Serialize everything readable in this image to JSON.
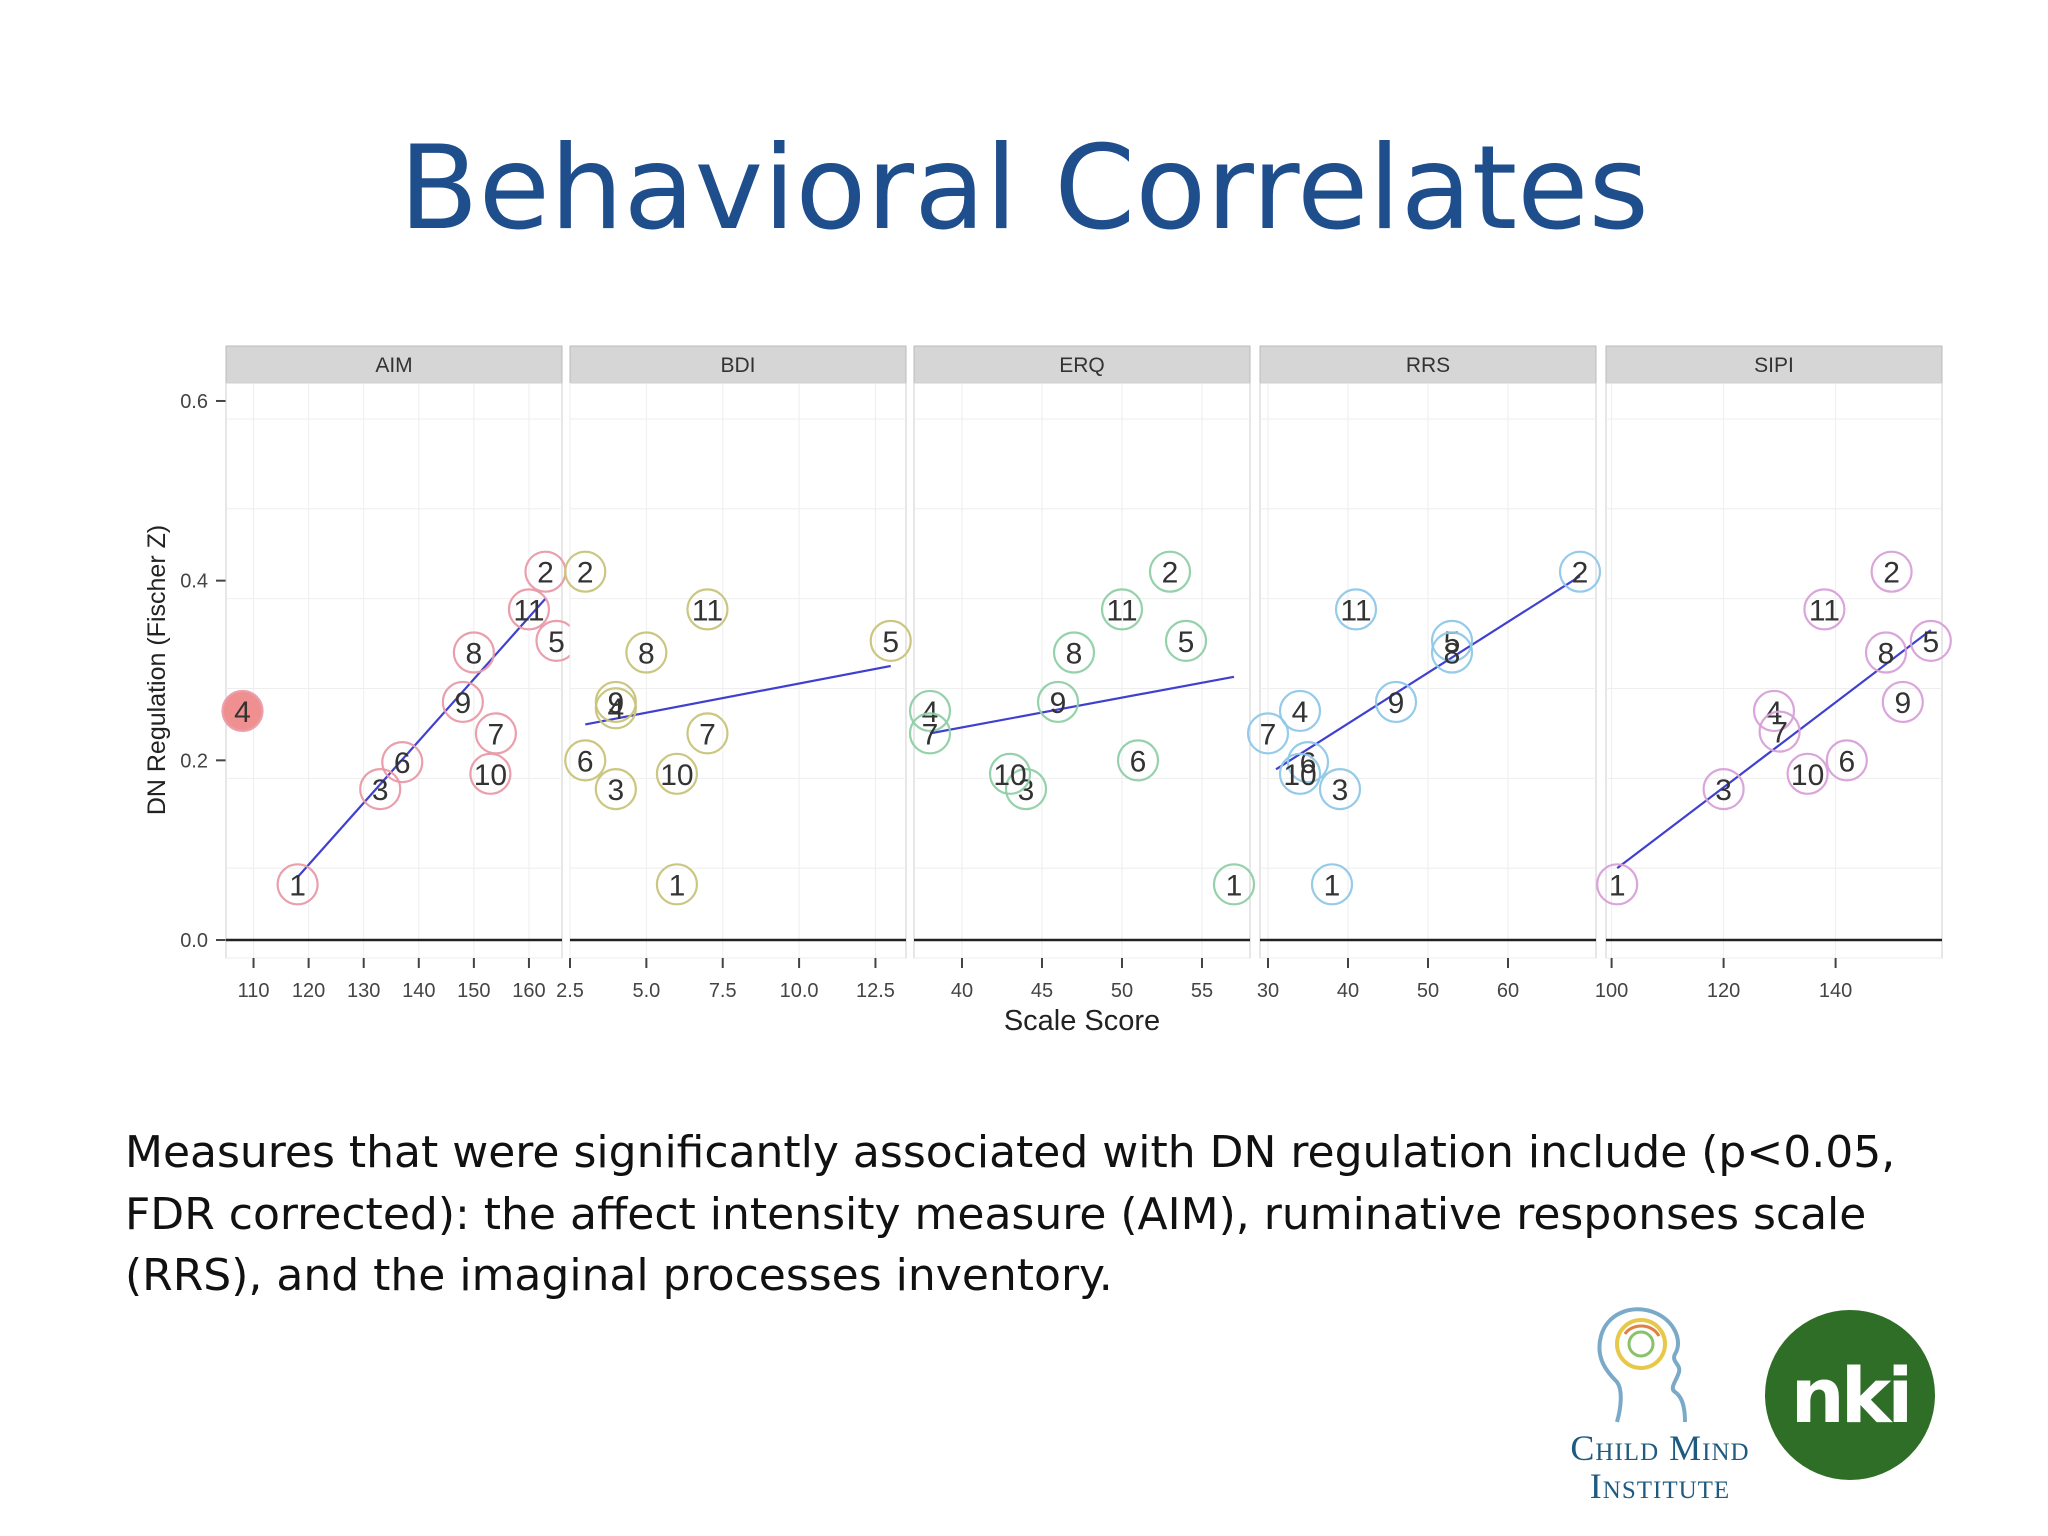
{
  "slide": {
    "title": "Behavioral Correlates",
    "caption_lines": [
      "Measures that were significantly associated with DN regulation include (p<0.05,",
      "FDR corrected):  the affect intensity measure (AIM), ruminative responses scale",
      "(RRS), and the imaginal processes inventory."
    ]
  },
  "logos": {
    "child_mind_line1": "Child Mind",
    "child_mind_line2": "Institute",
    "nki_text": "nki"
  },
  "chart_data": {
    "type": "scatter",
    "xlabel": "Scale Score",
    "ylabel": "DN Regulation (Fischer Z)",
    "ylim": [
      -0.02,
      0.62
    ],
    "yticks": [
      0.0,
      0.2,
      0.4,
      0.6
    ],
    "ytick_labels": [
      "0.0",
      "0.2",
      "0.4",
      "0.6"
    ],
    "grid": true,
    "line_color": "#4040d0",
    "panels": [
      {
        "name": "AIM",
        "color": "#e89aa8",
        "xlim": [
          105,
          166
        ],
        "xticks": [
          110,
          120,
          130,
          140,
          150,
          160
        ],
        "xtick_labels": [
          "110",
          "120",
          "130",
          "140",
          "150",
          "160"
        ],
        "fit": [
          [
            118,
            0.07
          ],
          [
            163,
            0.38
          ]
        ],
        "highlight_label": "4",
        "points": [
          {
            "label": "1",
            "x": 118,
            "y": 0.062
          },
          {
            "label": "2",
            "x": 163,
            "y": 0.41
          },
          {
            "label": "3",
            "x": 133,
            "y": 0.168
          },
          {
            "label": "4",
            "x": 108,
            "y": 0.255
          },
          {
            "label": "5",
            "x": 165,
            "y": 0.333
          },
          {
            "label": "6",
            "x": 137,
            "y": 0.198
          },
          {
            "label": "7",
            "x": 154,
            "y": 0.23
          },
          {
            "label": "8",
            "x": 150,
            "y": 0.32
          },
          {
            "label": "9",
            "x": 148,
            "y": 0.265
          },
          {
            "label": "10",
            "x": 153,
            "y": 0.185
          },
          {
            "label": "11",
            "x": 160,
            "y": 0.368
          }
        ]
      },
      {
        "name": "BDI",
        "color": "#c8c47a",
        "xlim": [
          2.5,
          13.5
        ],
        "xticks": [
          2.5,
          5.0,
          7.5,
          10.0,
          12.5
        ],
        "xtick_labels": [
          "2.5",
          "5.0",
          "7.5",
          "10.0",
          "12.5"
        ],
        "fit": [
          [
            3,
            0.24
          ],
          [
            13,
            0.305
          ]
        ],
        "points": [
          {
            "label": "1",
            "x": 6,
            "y": 0.062
          },
          {
            "label": "2",
            "x": 3,
            "y": 0.41
          },
          {
            "label": "3",
            "x": 4,
            "y": 0.168
          },
          {
            "label": "4",
            "x": 4,
            "y": 0.258
          },
          {
            "label": "5",
            "x": 13,
            "y": 0.333
          },
          {
            "label": "6",
            "x": 3,
            "y": 0.2
          },
          {
            "label": "7",
            "x": 7,
            "y": 0.23
          },
          {
            "label": "8",
            "x": 5,
            "y": 0.32
          },
          {
            "label": "9",
            "x": 4,
            "y": 0.265
          },
          {
            "label": "10",
            "x": 6,
            "y": 0.185
          },
          {
            "label": "11",
            "x": 7,
            "y": 0.368
          }
        ]
      },
      {
        "name": "ERQ",
        "color": "#8fcfa6",
        "xlim": [
          37,
          58
        ],
        "xticks": [
          40,
          45,
          50,
          55
        ],
        "xtick_labels": [
          "40",
          "45",
          "50",
          "55"
        ],
        "fit": [
          [
            38,
            0.23
          ],
          [
            57,
            0.293
          ]
        ],
        "points": [
          {
            "label": "1",
            "x": 57,
            "y": 0.062
          },
          {
            "label": "2",
            "x": 53,
            "y": 0.41
          },
          {
            "label": "3",
            "x": 44,
            "y": 0.168
          },
          {
            "label": "4",
            "x": 38,
            "y": 0.255
          },
          {
            "label": "5",
            "x": 54,
            "y": 0.333
          },
          {
            "label": "6",
            "x": 51,
            "y": 0.2
          },
          {
            "label": "7",
            "x": 38,
            "y": 0.23
          },
          {
            "label": "8",
            "x": 47,
            "y": 0.32
          },
          {
            "label": "9",
            "x": 46,
            "y": 0.265
          },
          {
            "label": "10",
            "x": 43,
            "y": 0.185
          },
          {
            "label": "11",
            "x": 50,
            "y": 0.368
          }
        ]
      },
      {
        "name": "RRS",
        "color": "#8fc8e8",
        "xlim": [
          29,
          71
        ],
        "xticks": [
          30,
          40,
          50,
          60
        ],
        "xtick_labels": [
          "30",
          "40",
          "50",
          "60"
        ],
        "fit": [
          [
            31,
            0.19
          ],
          [
            69,
            0.405
          ]
        ],
        "points": [
          {
            "label": "1",
            "x": 38,
            "y": 0.062
          },
          {
            "label": "2",
            "x": 69,
            "y": 0.41
          },
          {
            "label": "3",
            "x": 39,
            "y": 0.168
          },
          {
            "label": "4",
            "x": 34,
            "y": 0.255
          },
          {
            "label": "5",
            "x": 53,
            "y": 0.333
          },
          {
            "label": "6",
            "x": 35,
            "y": 0.198
          },
          {
            "label": "7",
            "x": 30,
            "y": 0.23
          },
          {
            "label": "8",
            "x": 53,
            "y": 0.32
          },
          {
            "label": "9",
            "x": 46,
            "y": 0.265
          },
          {
            "label": "10",
            "x": 34,
            "y": 0.185
          },
          {
            "label": "11",
            "x": 41,
            "y": 0.368
          }
        ]
      },
      {
        "name": "SIPI",
        "color": "#d8a0d8",
        "xlim": [
          99,
          159
        ],
        "xticks": [
          100,
          120,
          140
        ],
        "xtick_labels": [
          "100",
          "120",
          "140"
        ],
        "fit": [
          [
            101,
            0.08
          ],
          [
            157,
            0.345
          ]
        ],
        "points": [
          {
            "label": "1",
            "x": 101,
            "y": 0.062
          },
          {
            "label": "2",
            "x": 150,
            "y": 0.41
          },
          {
            "label": "3",
            "x": 120,
            "y": 0.168
          },
          {
            "label": "4",
            "x": 129,
            "y": 0.255
          },
          {
            "label": "5",
            "x": 157,
            "y": 0.333
          },
          {
            "label": "6",
            "x": 142,
            "y": 0.2
          },
          {
            "label": "7",
            "x": 130,
            "y": 0.232
          },
          {
            "label": "8",
            "x": 149,
            "y": 0.32
          },
          {
            "label": "9",
            "x": 152,
            "y": 0.265
          },
          {
            "label": "10",
            "x": 135,
            "y": 0.185
          },
          {
            "label": "11",
            "x": 138,
            "y": 0.368
          }
        ]
      }
    ]
  }
}
